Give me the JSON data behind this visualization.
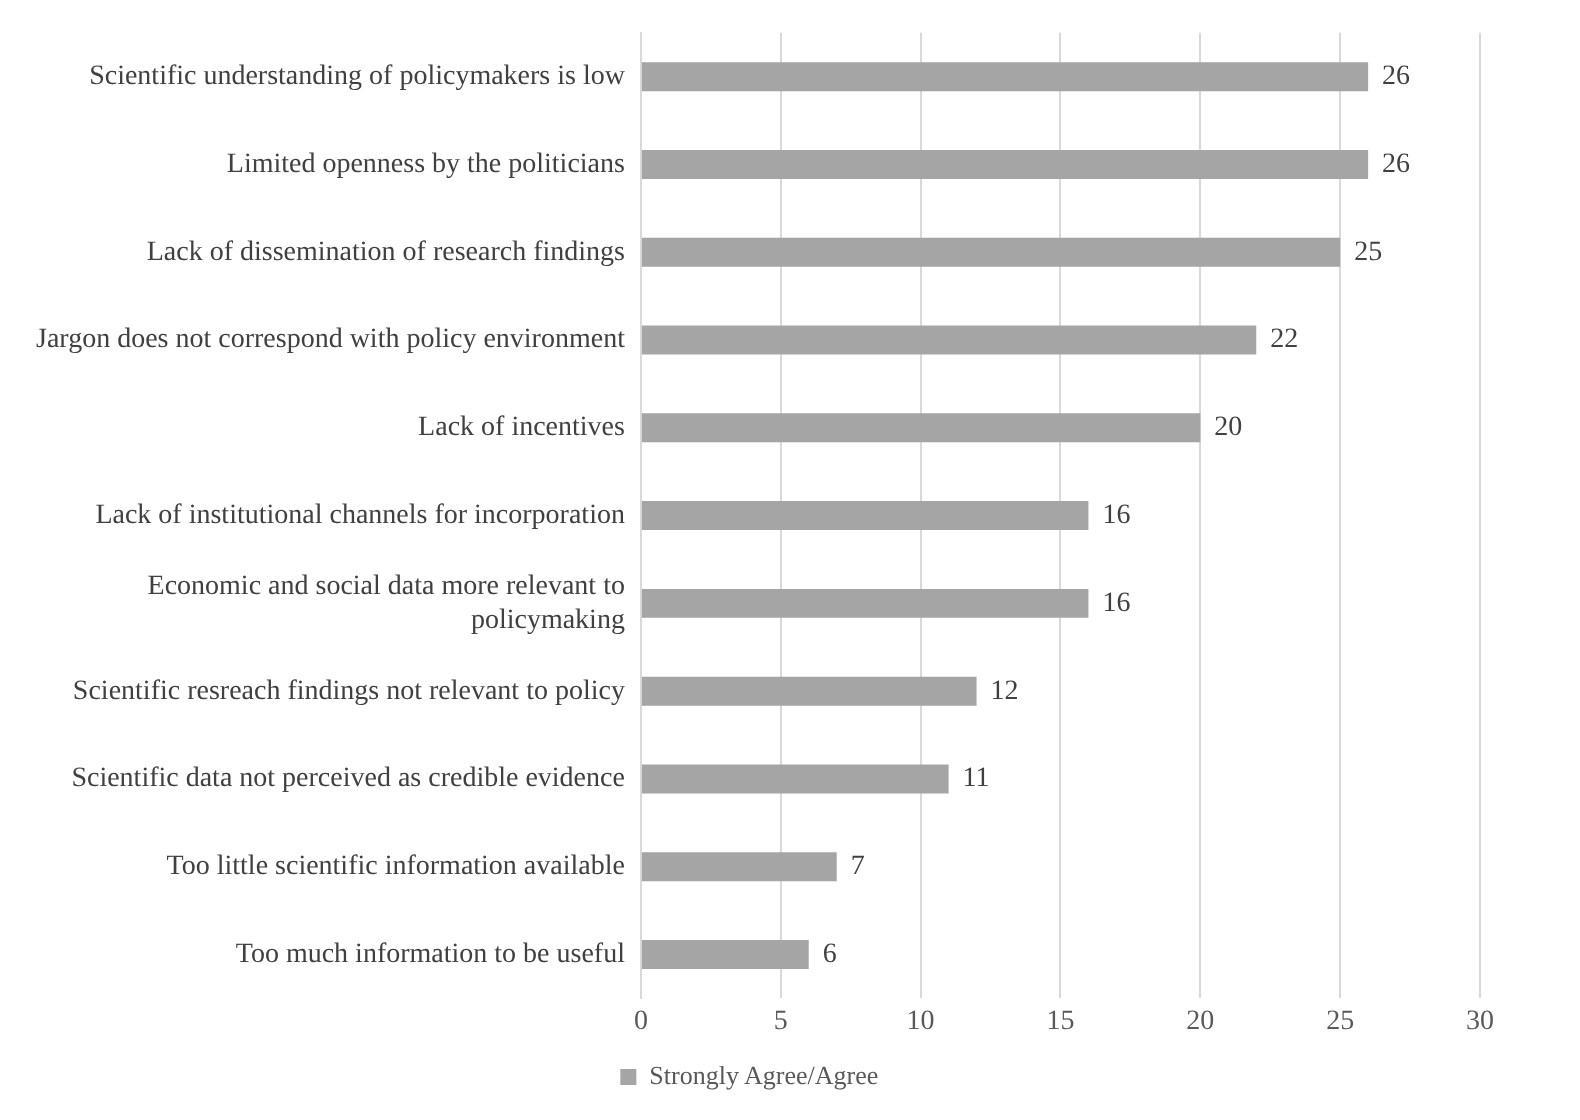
{
  "chart_data": {
    "type": "bar",
    "orientation": "horizontal",
    "categories": [
      "Scientific understanding of policymakers is low",
      "Limited openness by the politicians",
      "Lack of dissemination of research findings",
      "Jargon does not correspond with policy environment",
      "Lack of incentives",
      "Lack of institutional channels for incorporation",
      "Economic and social data more relevant to policymaking",
      "Scientific resreach findings not relevant to policy",
      "Scientific data not perceived as credible evidence",
      "Too little scientific information available",
      "Too much information to be useful"
    ],
    "series": [
      {
        "name": "Strongly Agree/Agree",
        "color": "#a5a5a5",
        "values": [
          26,
          26,
          25,
          22,
          20,
          16,
          16,
          12,
          11,
          7,
          6
        ]
      }
    ],
    "xlim": [
      0,
      30
    ],
    "xticks": [
      0,
      5,
      10,
      15,
      20,
      25,
      30
    ],
    "grid": "x",
    "legend": "bottom",
    "data_labels": true
  }
}
